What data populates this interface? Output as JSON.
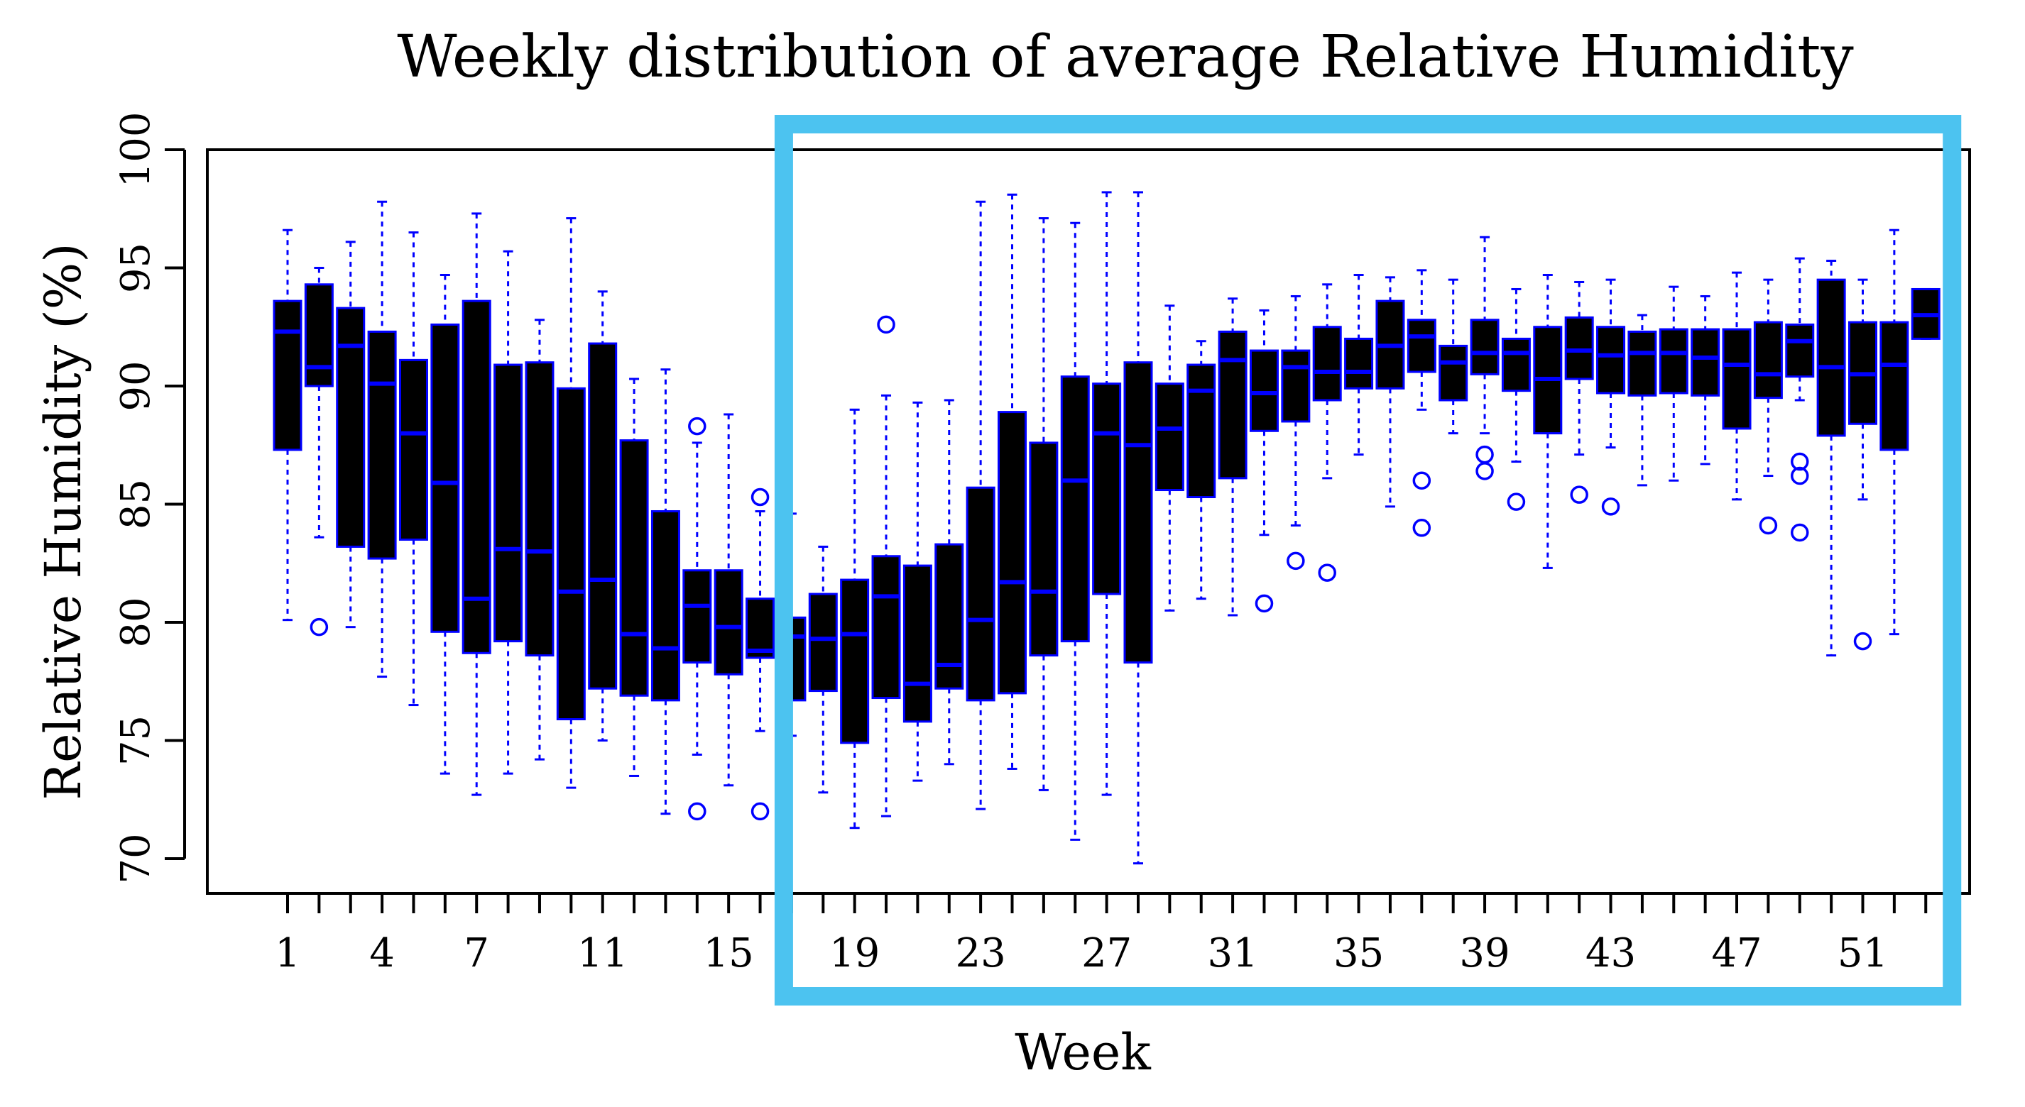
{
  "chart_data": {
    "type": "boxplot",
    "title": "Weekly distribution of average Relative Humidity",
    "xlabel": "Week",
    "ylabel": "Relative Humidity (%)",
    "ylim": [
      70,
      100
    ],
    "yticks": [
      70,
      75,
      80,
      85,
      90,
      95,
      100
    ],
    "xtick_labels": [
      "1",
      "4",
      "7",
      "11",
      "15",
      "19",
      "23",
      "27",
      "31",
      "35",
      "39",
      "43",
      "47",
      "51"
    ],
    "xtick_weeks": [
      1,
      4,
      7,
      11,
      15,
      19,
      23,
      27,
      31,
      35,
      39,
      43,
      47,
      51
    ],
    "highlight_weeks": [
      17,
      53
    ],
    "colors": {
      "box_fill": "#000000",
      "box_border": "#0000ff",
      "whisker": "#0000ff",
      "outlier": "#0000ff",
      "highlight": "#4cc3f0",
      "axis": "#000000"
    },
    "boxes": [
      {
        "week": 1,
        "wlo": 80.1,
        "q1": 87.3,
        "med": 92.3,
        "q3": 93.6,
        "whi": 96.6,
        "out": []
      },
      {
        "week": 2,
        "wlo": 83.6,
        "q1": 90.0,
        "med": 90.8,
        "q3": 94.3,
        "whi": 95.0,
        "out": [
          79.8
        ]
      },
      {
        "week": 3,
        "wlo": 79.8,
        "q1": 83.2,
        "med": 91.7,
        "q3": 93.3,
        "whi": 96.1,
        "out": []
      },
      {
        "week": 4,
        "wlo": 77.7,
        "q1": 82.7,
        "med": 90.1,
        "q3": 92.3,
        "whi": 97.8,
        "out": []
      },
      {
        "week": 5,
        "wlo": 76.5,
        "q1": 83.5,
        "med": 88.0,
        "q3": 91.1,
        "whi": 96.5,
        "out": []
      },
      {
        "week": 6,
        "wlo": 73.6,
        "q1": 79.6,
        "med": 85.9,
        "q3": 92.6,
        "whi": 94.7,
        "out": []
      },
      {
        "week": 7,
        "wlo": 72.7,
        "q1": 78.7,
        "med": 81.0,
        "q3": 93.6,
        "whi": 97.3,
        "out": []
      },
      {
        "week": 8,
        "wlo": 73.6,
        "q1": 79.2,
        "med": 83.1,
        "q3": 90.9,
        "whi": 95.7,
        "out": []
      },
      {
        "week": 9,
        "wlo": 74.2,
        "q1": 78.6,
        "med": 83.0,
        "q3": 91.0,
        "whi": 92.8,
        "out": []
      },
      {
        "week": 10,
        "wlo": 73.0,
        "q1": 75.9,
        "med": 81.3,
        "q3": 89.9,
        "whi": 97.1,
        "out": []
      },
      {
        "week": 11,
        "wlo": 75.0,
        "q1": 77.2,
        "med": 81.8,
        "q3": 91.8,
        "whi": 94.0,
        "out": []
      },
      {
        "week": 12,
        "wlo": 73.5,
        "q1": 76.9,
        "med": 79.5,
        "q3": 87.7,
        "whi": 90.3,
        "out": []
      },
      {
        "week": 13,
        "wlo": 71.9,
        "q1": 76.7,
        "med": 78.9,
        "q3": 84.7,
        "whi": 90.7,
        "out": []
      },
      {
        "week": 14,
        "wlo": 74.4,
        "q1": 78.3,
        "med": 80.7,
        "q3": 82.2,
        "whi": 87.6,
        "out": [
          72.0,
          88.3
        ]
      },
      {
        "week": 15,
        "wlo": 73.1,
        "q1": 77.8,
        "med": 79.8,
        "q3": 82.2,
        "whi": 88.8,
        "out": []
      },
      {
        "week": 16,
        "wlo": 75.4,
        "q1": 78.5,
        "med": 78.8,
        "q3": 81.0,
        "whi": 84.7,
        "out": [
          72.0,
          85.3
        ]
      },
      {
        "week": 17,
        "wlo": 75.2,
        "q1": 76.7,
        "med": 79.4,
        "q3": 80.2,
        "whi": 84.6,
        "out": []
      },
      {
        "week": 18,
        "wlo": 72.8,
        "q1": 77.1,
        "med": 79.3,
        "q3": 81.2,
        "whi": 83.2,
        "out": []
      },
      {
        "week": 19,
        "wlo": 71.3,
        "q1": 74.9,
        "med": 79.5,
        "q3": 81.8,
        "whi": 89.0,
        "out": []
      },
      {
        "week": 20,
        "wlo": 71.8,
        "q1": 76.8,
        "med": 81.1,
        "q3": 82.8,
        "whi": 89.6,
        "out": [
          92.6
        ]
      },
      {
        "week": 21,
        "wlo": 73.3,
        "q1": 75.8,
        "med": 77.4,
        "q3": 82.4,
        "whi": 89.3,
        "out": []
      },
      {
        "week": 22,
        "wlo": 74.0,
        "q1": 77.2,
        "med": 78.2,
        "q3": 83.3,
        "whi": 89.4,
        "out": []
      },
      {
        "week": 23,
        "wlo": 72.1,
        "q1": 76.7,
        "med": 80.1,
        "q3": 85.7,
        "whi": 97.8,
        "out": []
      },
      {
        "week": 24,
        "wlo": 73.8,
        "q1": 77.0,
        "med": 81.7,
        "q3": 88.9,
        "whi": 98.1,
        "out": []
      },
      {
        "week": 25,
        "wlo": 72.9,
        "q1": 78.6,
        "med": 81.3,
        "q3": 87.6,
        "whi": 97.1,
        "out": []
      },
      {
        "week": 26,
        "wlo": 70.8,
        "q1": 79.2,
        "med": 86.0,
        "q3": 90.4,
        "whi": 96.9,
        "out": []
      },
      {
        "week": 27,
        "wlo": 72.7,
        "q1": 81.2,
        "med": 88.0,
        "q3": 90.1,
        "whi": 98.2,
        "out": []
      },
      {
        "week": 28,
        "wlo": 69.8,
        "q1": 78.3,
        "med": 87.5,
        "q3": 91.0,
        "whi": 98.2,
        "out": []
      },
      {
        "week": 29,
        "wlo": 80.5,
        "q1": 85.6,
        "med": 88.2,
        "q3": 90.1,
        "whi": 93.4,
        "out": []
      },
      {
        "week": 30,
        "wlo": 81.0,
        "q1": 85.3,
        "med": 89.8,
        "q3": 90.9,
        "whi": 91.9,
        "out": []
      },
      {
        "week": 31,
        "wlo": 80.3,
        "q1": 86.1,
        "med": 91.1,
        "q3": 92.3,
        "whi": 93.7,
        "out": []
      },
      {
        "week": 32,
        "wlo": 83.7,
        "q1": 88.1,
        "med": 89.7,
        "q3": 91.5,
        "whi": 93.2,
        "out": [
          80.8
        ]
      },
      {
        "week": 33,
        "wlo": 84.1,
        "q1": 88.5,
        "med": 90.8,
        "q3": 91.5,
        "whi": 93.8,
        "out": [
          82.6
        ]
      },
      {
        "week": 34,
        "wlo": 86.1,
        "q1": 89.4,
        "med": 90.6,
        "q3": 92.5,
        "whi": 94.3,
        "out": [
          82.1
        ]
      },
      {
        "week": 35,
        "wlo": 87.1,
        "q1": 89.9,
        "med": 90.6,
        "q3": 92.0,
        "whi": 94.7,
        "out": []
      },
      {
        "week": 36,
        "wlo": 84.9,
        "q1": 89.9,
        "med": 91.7,
        "q3": 93.6,
        "whi": 94.6,
        "out": []
      },
      {
        "week": 37,
        "wlo": 89.0,
        "q1": 90.6,
        "med": 92.1,
        "q3": 92.8,
        "whi": 94.9,
        "out": [
          84.0,
          86.0
        ]
      },
      {
        "week": 38,
        "wlo": 88.0,
        "q1": 89.4,
        "med": 91.0,
        "q3": 91.7,
        "whi": 94.5,
        "out": []
      },
      {
        "week": 39,
        "wlo": 88.0,
        "q1": 90.5,
        "med": 91.4,
        "q3": 92.8,
        "whi": 96.3,
        "out": [
          86.4,
          87.1
        ]
      },
      {
        "week": 40,
        "wlo": 86.8,
        "q1": 89.8,
        "med": 91.4,
        "q3": 92.0,
        "whi": 94.1,
        "out": [
          85.1
        ]
      },
      {
        "week": 41,
        "wlo": 82.3,
        "q1": 88.0,
        "med": 90.3,
        "q3": 92.5,
        "whi": 94.7,
        "out": []
      },
      {
        "week": 42,
        "wlo": 87.1,
        "q1": 90.3,
        "med": 91.5,
        "q3": 92.9,
        "whi": 94.4,
        "out": [
          85.4
        ]
      },
      {
        "week": 43,
        "wlo": 87.4,
        "q1": 89.7,
        "med": 91.3,
        "q3": 92.5,
        "whi": 94.5,
        "out": [
          84.9
        ]
      },
      {
        "week": 44,
        "wlo": 85.8,
        "q1": 89.6,
        "med": 91.4,
        "q3": 92.3,
        "whi": 93.0,
        "out": []
      },
      {
        "week": 45,
        "wlo": 86.0,
        "q1": 89.7,
        "med": 91.4,
        "q3": 92.4,
        "whi": 94.2,
        "out": []
      },
      {
        "week": 46,
        "wlo": 86.7,
        "q1": 89.6,
        "med": 91.2,
        "q3": 92.4,
        "whi": 93.8,
        "out": []
      },
      {
        "week": 47,
        "wlo": 85.2,
        "q1": 88.2,
        "med": 90.9,
        "q3": 92.4,
        "whi": 94.8,
        "out": []
      },
      {
        "week": 48,
        "wlo": 86.2,
        "q1": 89.5,
        "med": 90.5,
        "q3": 92.7,
        "whi": 94.5,
        "out": [
          84.1
        ]
      },
      {
        "week": 49,
        "wlo": 89.4,
        "q1": 90.4,
        "med": 91.9,
        "q3": 92.6,
        "whi": 95.4,
        "out": [
          83.8,
          86.2,
          86.8
        ]
      },
      {
        "week": 50,
        "wlo": 78.6,
        "q1": 87.9,
        "med": 90.8,
        "q3": 94.5,
        "whi": 95.3,
        "out": []
      },
      {
        "week": 51,
        "wlo": 85.2,
        "q1": 88.4,
        "med": 90.5,
        "q3": 92.7,
        "whi": 94.5,
        "out": [
          79.2
        ]
      },
      {
        "week": 52,
        "wlo": 79.5,
        "q1": 87.3,
        "med": 90.9,
        "q3": 92.7,
        "whi": 96.6,
        "out": []
      },
      {
        "week": 53,
        "wlo": 92.0,
        "q1": 92.0,
        "med": 93.0,
        "q3": 94.1,
        "whi": 94.1,
        "out": []
      }
    ]
  }
}
